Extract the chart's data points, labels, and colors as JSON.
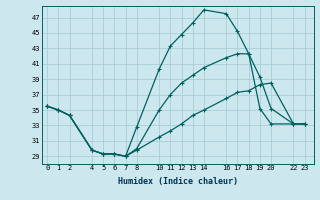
{
  "xlabel": "Humidex (Indice chaleur)",
  "bg_color": "#cce8ee",
  "grid_color": "#aacdd6",
  "line_color": "#006060",
  "xticks": [
    0,
    1,
    2,
    4,
    5,
    6,
    7,
    8,
    10,
    11,
    12,
    13,
    14,
    16,
    17,
    18,
    19,
    20,
    22,
    23
  ],
  "yticks": [
    29,
    31,
    33,
    35,
    37,
    39,
    41,
    43,
    45,
    47
  ],
  "xlim": [
    -0.5,
    23.8
  ],
  "ylim": [
    28.0,
    48.5
  ],
  "line1_x": [
    0,
    1,
    2,
    4,
    5,
    6,
    7,
    8,
    10,
    11,
    12,
    13,
    14,
    16,
    17,
    18,
    19,
    20,
    22,
    23
  ],
  "line1_y": [
    35.5,
    35.0,
    34.3,
    29.8,
    29.3,
    29.3,
    29.0,
    32.8,
    40.3,
    43.3,
    44.8,
    46.3,
    48.0,
    47.5,
    45.2,
    42.3,
    35.2,
    33.2,
    33.2,
    33.2
  ],
  "line2_x": [
    0,
    1,
    2,
    4,
    5,
    6,
    7,
    8,
    10,
    11,
    12,
    13,
    14,
    16,
    17,
    18,
    19,
    20,
    22,
    23
  ],
  "line2_y": [
    35.5,
    35.0,
    34.3,
    29.8,
    29.3,
    29.3,
    29.0,
    30.0,
    35.0,
    37.0,
    38.5,
    39.5,
    40.5,
    41.8,
    42.3,
    42.3,
    39.3,
    35.2,
    33.2,
    33.2
  ],
  "line3_x": [
    0,
    1,
    2,
    4,
    5,
    6,
    7,
    8,
    10,
    11,
    12,
    13,
    14,
    16,
    17,
    18,
    19,
    20,
    22,
    23
  ],
  "line3_y": [
    35.5,
    35.0,
    34.3,
    29.8,
    29.3,
    29.3,
    29.0,
    29.8,
    31.5,
    32.3,
    33.2,
    34.3,
    35.0,
    36.5,
    37.3,
    37.5,
    38.3,
    38.5,
    33.2,
    33.2
  ]
}
